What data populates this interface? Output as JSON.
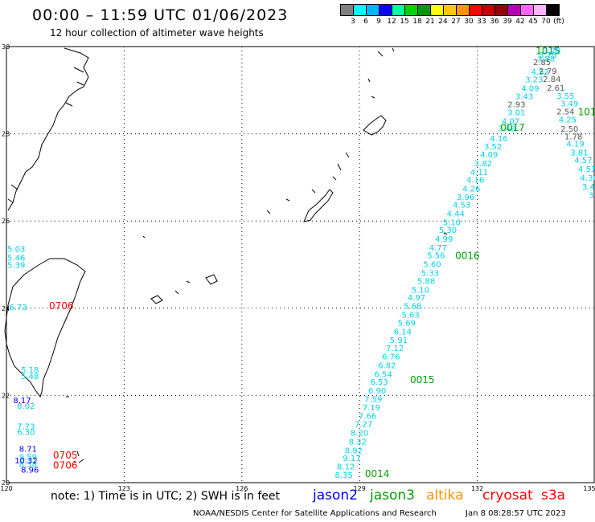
{
  "header": {
    "title": "00:00 – 11:59 UTC 01/06/2023",
    "subtitle": "12 hour collection of altimeter wave heights"
  },
  "color_scale": {
    "colors": [
      "#808080",
      "#00ffff",
      "#00b4ff",
      "#0000ff",
      "#00ffa0",
      "#00d200",
      "#009600",
      "#ffff00",
      "#ffc800",
      "#ff9600",
      "#ff0000",
      "#c80000",
      "#960000",
      "#b400b4",
      "#ff64ff",
      "#ffb4ff",
      "#000000"
    ],
    "labels": [
      "3",
      "6",
      "9",
      "12",
      "15",
      "18",
      "21",
      "24",
      "27",
      "30",
      "33",
      "36",
      "39",
      "42",
      "45",
      "70",
      "(ft)"
    ]
  },
  "map": {
    "lon_range": [
      120,
      135
    ],
    "lat_range": [
      20,
      30
    ],
    "lon_ticks": [
      "120",
      "123",
      "126",
      "129",
      "132",
      "135"
    ],
    "lat_ticks": [
      "30",
      "28",
      "26",
      "24",
      "22",
      "20"
    ],
    "grid": "dotted",
    "colors": {
      "jason2": "#0000ff",
      "jason3": "#00a000",
      "altika": "#ff9600",
      "cryosat": "#ff0000",
      "s3a": "#ff0000",
      "coast": "#000000",
      "pass_gray": "#555555",
      "pass_cyan": "#00d0e8"
    }
  },
  "chart_data": {
    "type": "scatter",
    "xlabel": "",
    "ylabel": "",
    "xlim": [
      120,
      135
    ],
    "ylim": [
      20,
      30
    ],
    "pass_jason3_mid": {
      "color": "#00d0e8",
      "values": [
        {
          "lon": 133.9,
          "lat": 29.92,
          "v": "3.78"
        },
        {
          "lon": 133.8,
          "lat": 29.82,
          "v": "3.75"
        },
        {
          "lon": 133.75,
          "lat": 29.73,
          "v": "3.88"
        },
        {
          "lon": 133.6,
          "lat": 29.43,
          "v": "4.52"
        },
        {
          "lon": 133.45,
          "lat": 29.25,
          "v": "3.23"
        },
        {
          "lon": 133.35,
          "lat": 29.05,
          "v": "4.09"
        },
        {
          "lon": 133.2,
          "lat": 28.87,
          "v": "3.43"
        },
        {
          "lon": 133.0,
          "lat": 28.5,
          "v": "3.01"
        },
        {
          "lon": 132.85,
          "lat": 28.3,
          "v": "4.07"
        },
        {
          "lon": 132.75,
          "lat": 28.13,
          "v": "3.48"
        },
        {
          "lon": 132.55,
          "lat": 27.9,
          "v": "4.16"
        },
        {
          "lon": 132.4,
          "lat": 27.72,
          "v": "3.52"
        },
        {
          "lon": 132.3,
          "lat": 27.53,
          "v": "4.09"
        },
        {
          "lon": 132.15,
          "lat": 27.33,
          "v": "3.82"
        },
        {
          "lon": 132.05,
          "lat": 27.13,
          "v": "4.11"
        },
        {
          "lon": 131.95,
          "lat": 26.95,
          "v": "4.16"
        },
        {
          "lon": 131.85,
          "lat": 26.75,
          "v": "4.26"
        },
        {
          "lon": 131.7,
          "lat": 26.56,
          "v": "3.96"
        },
        {
          "lon": 131.6,
          "lat": 26.38,
          "v": "4.53"
        },
        {
          "lon": 131.45,
          "lat": 26.18,
          "v": "4.44"
        },
        {
          "lon": 131.35,
          "lat": 25.98,
          "v": "5.10"
        },
        {
          "lon": 131.25,
          "lat": 25.8,
          "v": "5.30"
        },
        {
          "lon": 131.15,
          "lat": 25.6,
          "v": "4.99"
        },
        {
          "lon": 131.0,
          "lat": 25.4,
          "v": "4.77"
        },
        {
          "lon": 130.95,
          "lat": 25.22,
          "v": "5.56"
        },
        {
          "lon": 130.85,
          "lat": 25.02,
          "v": "5.60"
        },
        {
          "lon": 130.8,
          "lat": 24.82,
          "v": "5.33"
        },
        {
          "lon": 130.7,
          "lat": 24.63,
          "v": "5.88"
        },
        {
          "lon": 130.55,
          "lat": 24.43,
          "v": "5.10"
        },
        {
          "lon": 130.45,
          "lat": 24.25,
          "v": "4.97"
        },
        {
          "lon": 130.35,
          "lat": 24.06,
          "v": "5.68"
        },
        {
          "lon": 130.3,
          "lat": 23.86,
          "v": "5.63"
        },
        {
          "lon": 130.2,
          "lat": 23.67,
          "v": "5.69"
        },
        {
          "lon": 130.1,
          "lat": 23.47,
          "v": "6.14"
        },
        {
          "lon": 130.0,
          "lat": 23.28,
          "v": "5.91"
        },
        {
          "lon": 129.9,
          "lat": 23.09,
          "v": "7.12"
        },
        {
          "lon": 129.8,
          "lat": 22.9,
          "v": "6.76"
        },
        {
          "lon": 129.7,
          "lat": 22.7,
          "v": "6.82"
        },
        {
          "lon": 129.6,
          "lat": 22.5,
          "v": "6.54"
        },
        {
          "lon": 129.5,
          "lat": 22.32,
          "v": "6.53"
        },
        {
          "lon": 129.45,
          "lat": 22.12,
          "v": "6.90"
        },
        {
          "lon": 129.35,
          "lat": 21.92,
          "v": "7.59"
        },
        {
          "lon": 129.3,
          "lat": 21.73,
          "v": "7.19"
        },
        {
          "lon": 129.2,
          "lat": 21.54,
          "v": "7.66"
        },
        {
          "lon": 129.1,
          "lat": 21.35,
          "v": "7.27"
        },
        {
          "lon": 129.0,
          "lat": 21.15,
          "v": "8.20"
        },
        {
          "lon": 128.95,
          "lat": 20.95,
          "v": "8.32"
        },
        {
          "lon": 128.85,
          "lat": 20.75,
          "v": "8.92"
        },
        {
          "lon": 128.8,
          "lat": 20.57,
          "v": "9.17"
        },
        {
          "lon": 128.65,
          "lat": 20.38,
          "v": "8.12"
        },
        {
          "lon": 128.6,
          "lat": 20.18,
          "v": "8.35"
        }
      ]
    },
    "pass_gray": {
      "color": "#555555",
      "values": [
        {
          "lon": 133.65,
          "lat": 29.65,
          "v": "2.85"
        },
        {
          "lon": 133.8,
          "lat": 29.45,
          "v": "2.79"
        },
        {
          "lon": 133.9,
          "lat": 29.26,
          "v": "2.84"
        },
        {
          "lon": 134.0,
          "lat": 29.06,
          "v": "2.61"
        },
        {
          "lon": 133.0,
          "lat": 28.68,
          "v": "2.93"
        },
        {
          "lon": 134.25,
          "lat": 28.52,
          "v": "2.54"
        },
        {
          "lon": 134.35,
          "lat": 28.12,
          "v": "2.50"
        },
        {
          "lon": 134.45,
          "lat": 27.95,
          "v": "1.78"
        }
      ]
    },
    "pass_jason3_east": {
      "color": "#00d0e8",
      "values": [
        {
          "lon": 134.25,
          "lat": 28.88,
          "v": "3.55"
        },
        {
          "lon": 134.35,
          "lat": 28.7,
          "v": "3.49"
        },
        {
          "lon": 134.3,
          "lat": 28.33,
          "v": "4.25"
        },
        {
          "lon": 134.5,
          "lat": 27.78,
          "v": "4.19"
        },
        {
          "lon": 134.6,
          "lat": 27.58,
          "v": "3.81"
        },
        {
          "lon": 134.7,
          "lat": 27.4,
          "v": "4.57"
        },
        {
          "lon": 134.8,
          "lat": 27.2,
          "v": "4.53"
        },
        {
          "lon": 134.85,
          "lat": 27.0,
          "v": "4.36"
        },
        {
          "lon": 134.9,
          "lat": 26.8,
          "v": "3.47"
        },
        {
          "lon": 135.0,
          "lat": 26.6,
          "v": "3.5"
        }
      ]
    },
    "pass_taiwan_cyan": {
      "color": "#00d0e8",
      "values": [
        {
          "lon": 120.25,
          "lat": 25.37,
          "v": "5.03"
        },
        {
          "lon": 120.25,
          "lat": 25.17,
          "v": "5.46"
        },
        {
          "lon": 120.25,
          "lat": 25.0,
          "v": "5.39"
        },
        {
          "lon": 120.3,
          "lat": 24.03,
          "v": "6.73"
        },
        {
          "lon": 120.6,
          "lat": 22.6,
          "v": "5.18"
        },
        {
          "lon": 120.6,
          "lat": 22.45,
          "v": "5.48"
        },
        {
          "lon": 120.5,
          "lat": 21.77,
          "v": "8.02"
        },
        {
          "lon": 120.5,
          "lat": 21.3,
          "v": "7.73"
        },
        {
          "lon": 120.5,
          "lat": 21.17,
          "v": "6.30"
        },
        {
          "lon": 120.55,
          "lat": 20.6,
          "v": "9.59"
        },
        {
          "lon": 120.55,
          "lat": 20.43,
          "v": "8.38"
        }
      ]
    },
    "pass_taiwan_blue": {
      "color": "#0000ff",
      "values": [
        {
          "lon": 120.4,
          "lat": 21.9,
          "v": "8.17"
        },
        {
          "lon": 120.55,
          "lat": 20.78,
          "v": "8.71"
        },
        {
          "lon": 120.5,
          "lat": 20.52,
          "v": "10.32"
        },
        {
          "lon": 120.6,
          "lat": 20.3,
          "v": "8.96"
        }
      ]
    },
    "time_labels": [
      {
        "lon": 133.8,
        "lat": 29.9,
        "t": "1015",
        "color": "#00a000"
      },
      {
        "lon": 134.8,
        "lat": 28.5,
        "t": "101",
        "color": "#00a000"
      },
      {
        "lon": 132.9,
        "lat": 28.14,
        "t": "0017",
        "color": "#00a000"
      },
      {
        "lon": 131.75,
        "lat": 25.2,
        "t": "0016",
        "color": "#00a000"
      },
      {
        "lon": 130.6,
        "lat": 22.36,
        "t": "0015",
        "color": "#00a000"
      },
      {
        "lon": 129.45,
        "lat": 20.2,
        "t": "0014",
        "color": "#00a000"
      },
      {
        "lon": 121.4,
        "lat": 24.05,
        "t": "0706",
        "color": "#ff0000"
      },
      {
        "lon": 121.5,
        "lat": 20.63,
        "t": "0705",
        "color": "#ff0000"
      },
      {
        "lon": 121.5,
        "lat": 20.4,
        "t": "0706",
        "color": "#ff0000"
      }
    ]
  },
  "legend": {
    "note": "note:  1) Time is in UTC;  2) SWH is in feet",
    "sources": [
      {
        "name": "jason2",
        "color": "#0000ff"
      },
      {
        "name": "jason3",
        "color": "#00a000"
      },
      {
        "name": "altika",
        "color": "#ff9600"
      },
      {
        "name": "cryosat",
        "color": "#ff0000"
      },
      {
        "name": "s3a",
        "color": "#ff0000"
      }
    ]
  },
  "footer": {
    "credit": "NOAA/NESDIS Center for Satellite Applications and Research",
    "timestamp": "Jan  8 08:28:57 UTC 2023"
  }
}
